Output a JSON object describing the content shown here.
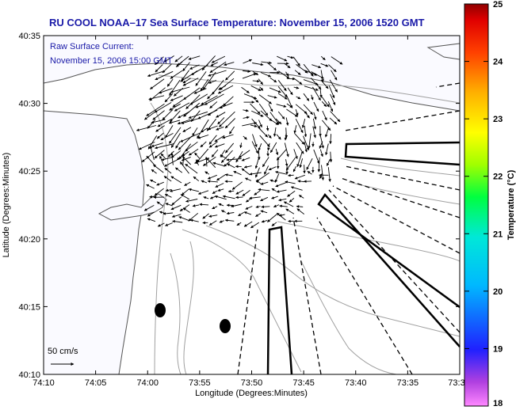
{
  "title": "RU COOL  NOAA–17  Sea Surface Temperature:  November 15, 2006 1520 GMT",
  "annotation": {
    "line1": "Raw Surface Current:",
    "line2": "November 15, 2006 15:00 GMT"
  },
  "scale_label": "50 cm/s",
  "axes": {
    "xlabel": "Longitude (Degrees:Minutes)",
    "ylabel": "Latitude (Degrees:Minutes)",
    "xticks": [
      "74:10",
      "74:05",
      "74:00",
      "73:55",
      "73:50",
      "73:45",
      "73:40",
      "73:35",
      "73:3"
    ],
    "yticks": [
      "40:35",
      "40:30",
      "40:25",
      "40:20",
      "40:15",
      "40:10"
    ]
  },
  "colorbar": {
    "label": "Temperature (°C)",
    "ticks": [
      "25",
      "24",
      "23",
      "22",
      "21",
      "20",
      "19",
      "18"
    ],
    "min": 18,
    "max": 25
  },
  "colors": {
    "title": "#1a1aa8",
    "land": "#fafaff",
    "contour": "#a0a0a0"
  }
}
